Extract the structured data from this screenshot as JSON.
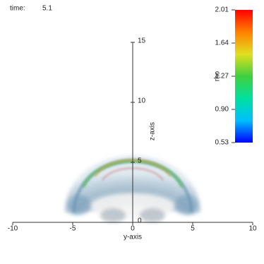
{
  "chart_data": {
    "type": "volume",
    "time_label": "time:",
    "time_value": 5.1,
    "xlabel": "y-axis",
    "ylabel": "z-axis",
    "xlim": [
      -10,
      10
    ],
    "xticks": [
      -10,
      -5,
      0,
      5,
      10
    ],
    "ylim": [
      0,
      15
    ],
    "yticks": [
      0,
      5,
      10,
      15
    ],
    "colorbar": {
      "label": "rho",
      "lim": [
        0.53,
        2.01
      ],
      "ticks": [
        2.01,
        1.64,
        1.27,
        {
          "value": 0.9,
          "label": "0.90"
        },
        0.53
      ],
      "colors": [
        "#0000ff",
        "#00bfff",
        "#00e0a0",
        "#40d040",
        "#e0e020",
        "#ff8000",
        "#ff0000"
      ]
    }
  }
}
